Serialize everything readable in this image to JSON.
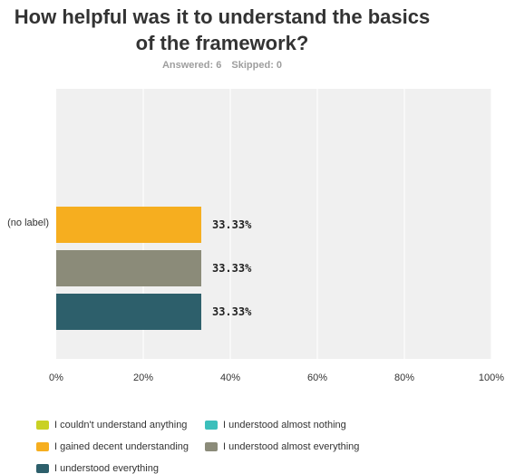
{
  "question": {
    "title_line1": "How helpful was it to understand the basics",
    "title_line2": "of the framework?",
    "answered": "Answered: 6",
    "skipped": "Skipped: 0"
  },
  "colors": {
    "plot_background": "#f0f0f0",
    "gridline": "#ffffff"
  },
  "chart_data": {
    "type": "bar",
    "orientation": "horizontal",
    "categories": [
      "(no label)"
    ],
    "series": [
      {
        "name": "I couldn't understand anything",
        "color": "#c9d124",
        "values": [
          0
        ]
      },
      {
        "name": "I understood almost nothing",
        "color": "#3cbfbb",
        "values": [
          0
        ]
      },
      {
        "name": "I gained decent understanding",
        "color": "#f6ae1f",
        "values": [
          33.33
        ]
      },
      {
        "name": "I understood almost everything",
        "color": "#8b8b79",
        "values": [
          33.33
        ]
      },
      {
        "name": "I understood everything",
        "color": "#2d5f6b",
        "values": [
          33.33
        ]
      }
    ],
    "data_labels": [
      "33.33%",
      "33.33%",
      "33.33%"
    ],
    "xlim": [
      0,
      100
    ],
    "x_ticks": [
      "0%",
      "20%",
      "40%",
      "60%",
      "80%",
      "100%"
    ],
    "grid": true,
    "legend_position": "bottom"
  }
}
